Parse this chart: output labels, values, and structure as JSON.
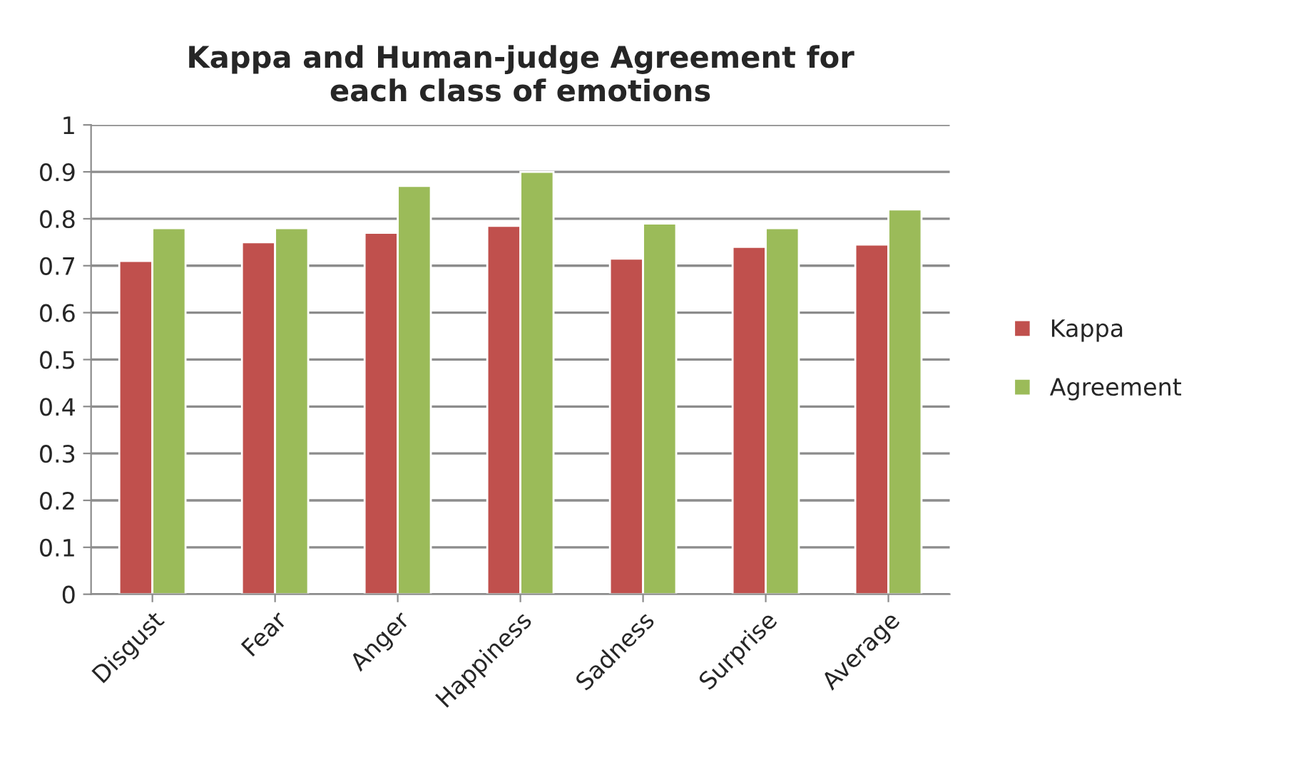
{
  "chart_data": {
    "type": "bar",
    "title": "Kappa and Human-judge Agreement for\neach class of emotions",
    "categories": [
      "Disgust",
      "Fear",
      "Anger",
      "Happiness",
      "Sadness",
      "Surprise",
      "Average"
    ],
    "series": [
      {
        "name": "Kappa",
        "color": "#c0504d",
        "values": [
          0.71,
          0.75,
          0.77,
          0.785,
          0.715,
          0.74,
          0.745
        ]
      },
      {
        "name": "Agreement",
        "color": "#9bbb59",
        "values": [
          0.78,
          0.78,
          0.87,
          0.9,
          0.79,
          0.78,
          0.82
        ]
      }
    ],
    "ylim": [
      0,
      1
    ],
    "yticks": [
      0,
      0.1,
      0.2,
      0.3,
      0.4,
      0.5,
      0.6,
      0.7,
      0.8,
      0.9,
      1
    ],
    "grid": "y",
    "legend": "right"
  }
}
